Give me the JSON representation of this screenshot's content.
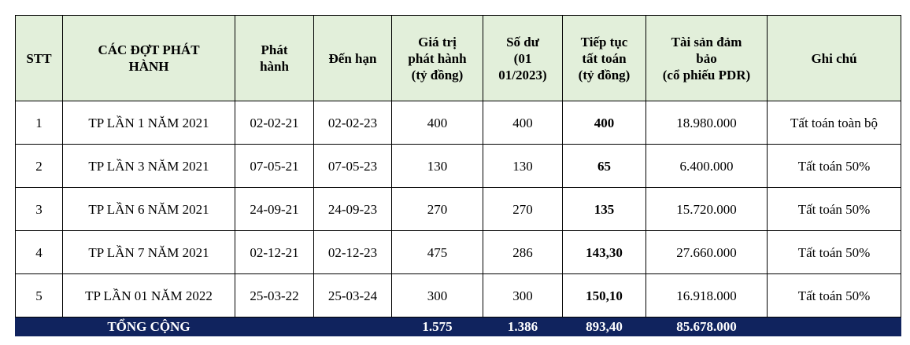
{
  "table": {
    "header": [
      [
        "STT"
      ],
      [
        "CÁC ĐỢT PHÁT",
        "HÀNH"
      ],
      [
        "Phát",
        "hành"
      ],
      [
        "Đến hạn"
      ],
      [
        "Giá trị",
        "phát hành",
        "(tỷ đồng)"
      ],
      [
        "Số dư",
        "(01",
        "01/2023)"
      ],
      [
        "Tiếp tục",
        "tất toán",
        "(tỷ đồng)"
      ],
      [
        "Tài sản đảm",
        "bảo",
        "(cổ phiếu PDR)"
      ],
      [
        "Ghi chú"
      ]
    ],
    "rows": [
      [
        "1",
        "TP LẦN 1 NĂM 2021",
        "02-02-21",
        "02-02-23",
        "400",
        "400",
        "400",
        "18.980.000",
        "Tất toán toàn bộ"
      ],
      [
        "2",
        "TP LẦN 3 NĂM 2021",
        "07-05-21",
        "07-05-23",
        "130",
        "130",
        "65",
        "6.400.000",
        "Tất toán 50%"
      ],
      [
        "3",
        "TP LẦN 6 NĂM 2021",
        "24-09-21",
        "24-09-23",
        "270",
        "270",
        "135",
        "15.720.000",
        "Tất toán 50%"
      ],
      [
        "4",
        "TP LẦN 7 NĂM 2021",
        "02-12-21",
        "02-12-23",
        "475",
        "286",
        "143,30",
        "27.660.000",
        "Tất toán 50%"
      ],
      [
        "5",
        "TP LẦN 01 NĂM 2022",
        "25-03-22",
        "25-03-24",
        "300",
        "300",
        "150,10",
        "16.918.000",
        "Tất toán 50%"
      ]
    ],
    "total": [
      null,
      "TỔNG CỘNG",
      null,
      null,
      "1.575",
      "1.386",
      "893,40",
      "85.678.000",
      null
    ]
  }
}
